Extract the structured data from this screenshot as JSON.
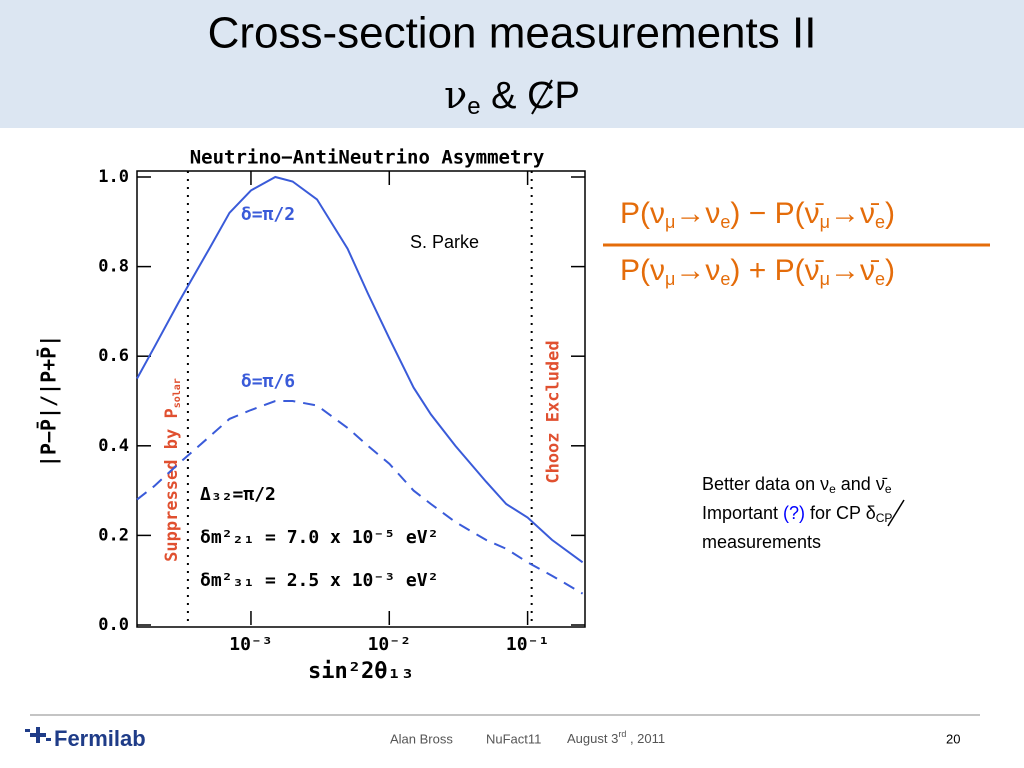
{
  "slide": {
    "title": "Cross-section measurements  II",
    "subtitle": [
      "ν",
      "e",
      " & CP"
    ],
    "citation": "S. Parke",
    "formula": {
      "numerator": [
        "P(ν",
        "μ",
        "→ν",
        "e",
        ") − P(ν̄",
        "μ",
        "→ν̄",
        "e",
        ")"
      ],
      "denominator": [
        "P(ν",
        "μ",
        "→ν",
        "e",
        ") + P(ν̄",
        "μ",
        "→ν̄",
        "e",
        ")"
      ]
    },
    "note": {
      "line1": [
        "Better data on ν",
        "e",
        " and ν̄",
        "e"
      ],
      "line2": [
        "Important ",
        "(?)",
        " for CP δ",
        "CP"
      ],
      "line3": "measurements"
    },
    "footer": {
      "author": "Alan Bross",
      "event": "NuFact11",
      "date": [
        "August 3",
        "rd",
        " , 2011"
      ],
      "page": "20",
      "logo": "Fermilab"
    }
  },
  "chart_data": {
    "type": "line",
    "title": "Neutrino−AntiNeutrino Asymmetry",
    "x_label": "sin²2θ₁₃",
    "y_label": "|P−P̄|/|P+P̄|",
    "xscale": "log",
    "xlim": [
      0.00015,
      0.26
    ],
    "ylim": [
      0,
      1
    ],
    "xticks": [
      {
        "value": 0.001,
        "label": "10⁻³"
      },
      {
        "value": 0.01,
        "label": "10⁻²"
      },
      {
        "value": 0.1,
        "label": "10⁻¹"
      }
    ],
    "yticks": [
      {
        "value": 0,
        "label": "0.0"
      },
      0.2,
      0.4,
      0.6,
      0.8,
      {
        "value": 1,
        "label": "1.0"
      }
    ],
    "x": [
      0.00015,
      0.0002,
      0.0003,
      0.0005,
      0.0007,
      0.001,
      0.0015,
      0.002,
      0.003,
      0.005,
      0.007,
      0.01,
      0.015,
      0.02,
      0.03,
      0.05,
      0.07,
      0.1,
      0.15,
      0.25
    ],
    "series": [
      {
        "name": "δ=π/2",
        "color": "#3a5bd9",
        "dashed": false,
        "values": [
          0.55,
          0.62,
          0.72,
          0.84,
          0.92,
          0.97,
          1.0,
          0.99,
          0.95,
          0.84,
          0.74,
          0.64,
          0.53,
          0.47,
          0.4,
          0.32,
          0.27,
          0.24,
          0.19,
          0.14
        ]
      },
      {
        "name": "δ=π/6",
        "color": "#3a5bd9",
        "dashed": true,
        "values": [
          0.28,
          0.31,
          0.36,
          0.42,
          0.46,
          0.48,
          0.5,
          0.5,
          0.49,
          0.44,
          0.4,
          0.36,
          0.3,
          0.27,
          0.23,
          0.19,
          0.17,
          0.14,
          0.11,
          0.07
        ]
      }
    ],
    "vlines": [
      {
        "x": 0.00035,
        "label": "Suppressed by P",
        "label_sub": "solar"
      },
      {
        "x": 0.107,
        "label": "Chooz  Excluded"
      }
    ],
    "annotations": [
      "Δ₃₂=π/2",
      "δm²₂₁ = 7.0 x 10⁻⁵ eV²",
      "δm²₃₁ = 2.5 x 10⁻³ eV²"
    ]
  }
}
